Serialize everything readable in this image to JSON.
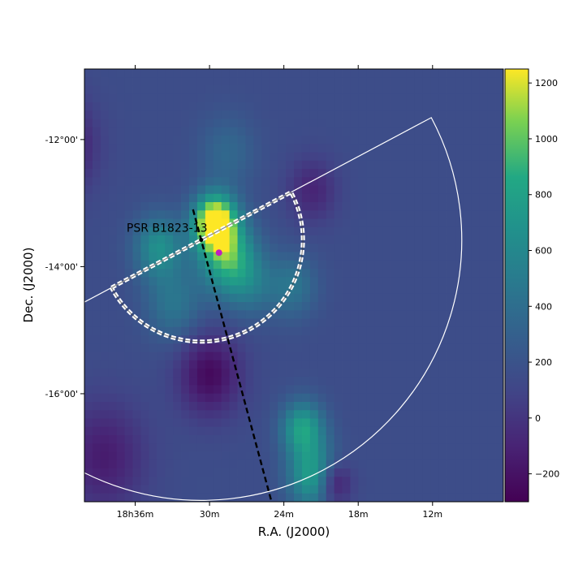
{
  "chart_data": {
    "type": "heatmap",
    "title": "",
    "xlabel": "R.A. (J2000)",
    "ylabel": "Dec. (J2000)",
    "x_ticks": [
      "18h36m",
      "30m",
      "24m",
      "18m",
      "12m"
    ],
    "y_ticks": [
      "-12°00'",
      "-14°00'",
      "-16°00'"
    ],
    "colorbar": {
      "colormap": "viridis",
      "range": [
        -300,
        1250
      ],
      "ticks": [
        "1200",
        "1000",
        "800",
        "600",
        "400",
        "200",
        "0",
        "−200"
      ]
    },
    "image": {
      "background_level": 150,
      "blobs": [
        {
          "ra_min": 276.55,
          "dec": -13.3,
          "peak": 1250,
          "width_deg": 0.3
        },
        {
          "ra_min": 275.45,
          "dec": -13.85,
          "peak": 750,
          "width_deg": 0.4
        },
        {
          "ra_min": 269.1,
          "dec": -16.55,
          "peak": 650,
          "width_deg": 0.3
        },
        {
          "ra_min": 268.2,
          "dec": -17.3,
          "peak": 650,
          "width_deg": 0.35
        },
        {
          "ra_min": 281.3,
          "dec": -13.7,
          "peak": 500,
          "width_deg": 0.35
        },
        {
          "ra_min": 280.0,
          "dec": -14.6,
          "peak": 300,
          "width_deg": 0.4
        },
        {
          "ra_min": 273.5,
          "dec": -14.3,
          "peak": 250,
          "width_deg": 0.35
        },
        {
          "ra_min": 270.0,
          "dec": -14.3,
          "peak": 300,
          "width_deg": 0.35
        },
        {
          "ra_min": 275.5,
          "dec": -12.2,
          "peak": 200,
          "width_deg": 0.4
        },
        {
          "ra_min": 290.0,
          "dec": -12.1,
          "peak": -450,
          "width_deg": 0.5
        },
        {
          "ra_min": 293.0,
          "dec": -13.4,
          "peak": -350,
          "width_deg": 0.4
        },
        {
          "ra_min": 277.0,
          "dec": -15.7,
          "peak": -400,
          "width_deg": 0.45
        },
        {
          "ra_min": 286.0,
          "dec": -17.0,
          "peak": -300,
          "width_deg": 0.6
        },
        {
          "ra_min": 266.5,
          "dec": -17.4,
          "peak": -450,
          "width_deg": 0.25
        },
        {
          "ra_min": 268.3,
          "dec": -12.8,
          "peak": -250,
          "width_deg": 0.35
        }
      ]
    },
    "annotations": [
      {
        "type": "pulsar",
        "label": "PSR B1823-13",
        "ra_min": 277.7,
        "dec": -13.58,
        "color": "#000000"
      },
      {
        "type": "source",
        "ra_min": 276.2,
        "dec": -13.78,
        "color": "#c020c0"
      },
      {
        "type": "dashed_line",
        "points": [
          {
            "ra_min": 278.4,
            "dec": -13.1
          },
          {
            "ra_min": 271.6,
            "dec": -17.8
          }
        ],
        "color": "#000000"
      },
      {
        "type": "half_disk",
        "center": {
          "ra_min": 277.7,
          "dec": -13.58
        },
        "radius_deg": 1.6,
        "color": "#ffffff"
      },
      {
        "type": "sector",
        "center": {
          "ra_min": 277.7,
          "dec": -13.58
        },
        "radius_deg": 4.1,
        "color": "#ffffff"
      }
    ]
  }
}
